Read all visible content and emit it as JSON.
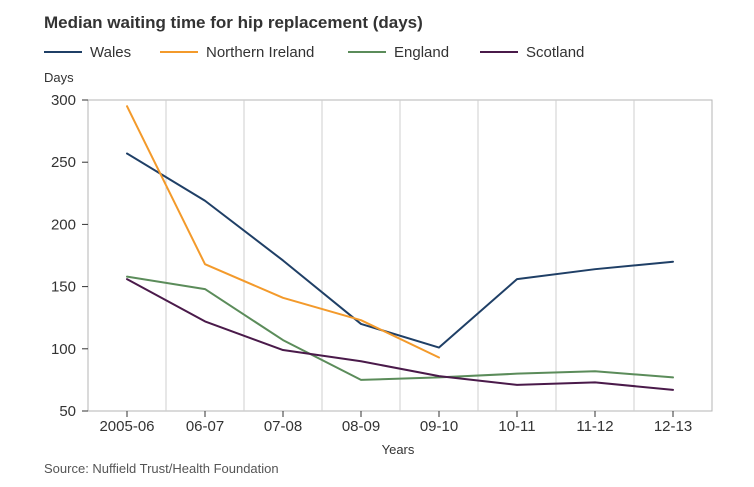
{
  "chart_data": {
    "type": "line",
    "title": "Median waiting time for hip replacement (days)",
    "ylabel": "Days",
    "xlabel": "Years",
    "source": "Source: Nuffield Trust/Health Foundation",
    "categories": [
      "2005-06",
      "06-07",
      "07-08",
      "08-09",
      "09-10",
      "10-11",
      "11-12",
      "12-13"
    ],
    "ylim": [
      50,
      300
    ],
    "yticks": [
      50,
      100,
      150,
      200,
      250,
      300
    ],
    "grid": "vertical",
    "legend_position": "top-left",
    "series": [
      {
        "name": "Wales",
        "color": "#1f3f66",
        "values": [
          257,
          219,
          171,
          120,
          101,
          156,
          164,
          170
        ]
      },
      {
        "name": "Northern Ireland",
        "color": "#f39a2b",
        "values": [
          295,
          168,
          141,
          123,
          93,
          null,
          null,
          null
        ]
      },
      {
        "name": "England",
        "color": "#5b8c5a",
        "values": [
          158,
          148,
          107,
          75,
          77,
          80,
          82,
          77
        ]
      },
      {
        "name": "Scotland",
        "color": "#4a1a4a",
        "values": [
          156,
          122,
          99,
          90,
          78,
          71,
          73,
          67
        ]
      }
    ]
  }
}
